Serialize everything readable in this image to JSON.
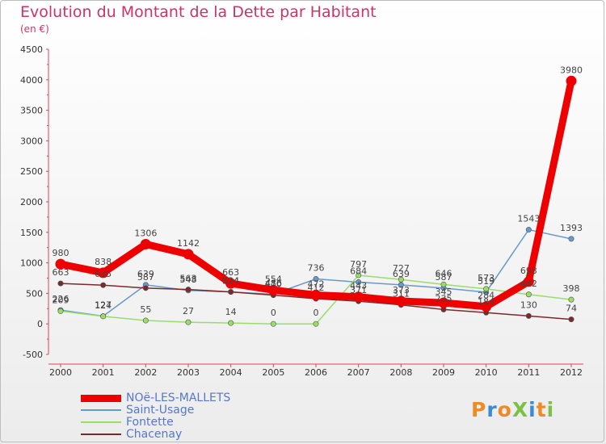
{
  "title": "Evolution du Montant de la Dette par Habitant",
  "subtitle": "(en €)",
  "logo": {
    "text": "ProXiti",
    "colors": [
      "#f08a24",
      "#3a8ad8",
      "#f08a24",
      "#7cc242",
      "#3a8ad8",
      "#f08a24",
      "#7cc242"
    ]
  },
  "chart_data": {
    "type": "line",
    "title": "Evolution du Montant de la Dette par Habitant",
    "ylabel": "(en €)",
    "x": [
      "2000",
      "2001",
      "2002",
      "2003",
      "2004",
      "2005",
      "2006",
      "2007",
      "2008",
      "2009",
      "2010",
      "2011",
      "2012"
    ],
    "ylim": [
      -500,
      4500
    ],
    "yticks": [
      "-500",
      "0",
      "500",
      "1000",
      "1500",
      "2000",
      "2500",
      "3000",
      "3500",
      "4000",
      "4500"
    ],
    "grid": false,
    "legend_position": "bottom-left",
    "series": [
      {
        "name": "NOë-LES-MALLETS",
        "color": "#ee0000",
        "width": 9,
        "marker": false,
        "values": [
          980,
          838,
          1306,
          1142,
          663,
          554,
          472,
          443,
          373,
          345,
          284,
          693,
          3980
        ],
        "labels": [
          "980",
          "838",
          "1306",
          "1142",
          "663",
          "554",
          "472",
          "443",
          "373",
          "345",
          "284",
          "693",
          "3980"
        ]
      },
      {
        "name": "Saint-Usage",
        "color": "#6699cc",
        "width": 1.5,
        "marker": true,
        "values": [
          226,
          127,
          639,
          548,
          524,
          486,
          736,
          684,
          639,
          587,
          519,
          1543,
          1393
        ],
        "labels": [
          "226",
          "127",
          "639",
          "548",
          "524",
          "486",
          "736",
          "684",
          "639",
          "587",
          "519",
          "1543",
          "1393"
        ]
      },
      {
        "name": "Fontette",
        "color": "#99dd66",
        "width": 1.5,
        "marker": true,
        "values": [
          209,
          124,
          55,
          27,
          14,
          0,
          0,
          797,
          727,
          646,
          573,
          482,
          398
        ],
        "labels": [
          "209",
          "124",
          "55",
          "27",
          "14",
          "0",
          "0",
          "797",
          "727",
          "646",
          "573",
          "482",
          "398"
        ]
      },
      {
        "name": "Chacenay",
        "color": "#7a2a2a",
        "width": 1.5,
        "marker": true,
        "values": [
          663,
          635,
          587,
          563,
          524,
          470,
          412,
          371,
          311,
          235,
          184,
          130,
          74
        ],
        "labels": [
          "663",
          "635",
          "587",
          "563",
          "524",
          "470",
          "412",
          "371",
          "311",
          "235",
          "184",
          "130",
          "74"
        ]
      }
    ]
  }
}
